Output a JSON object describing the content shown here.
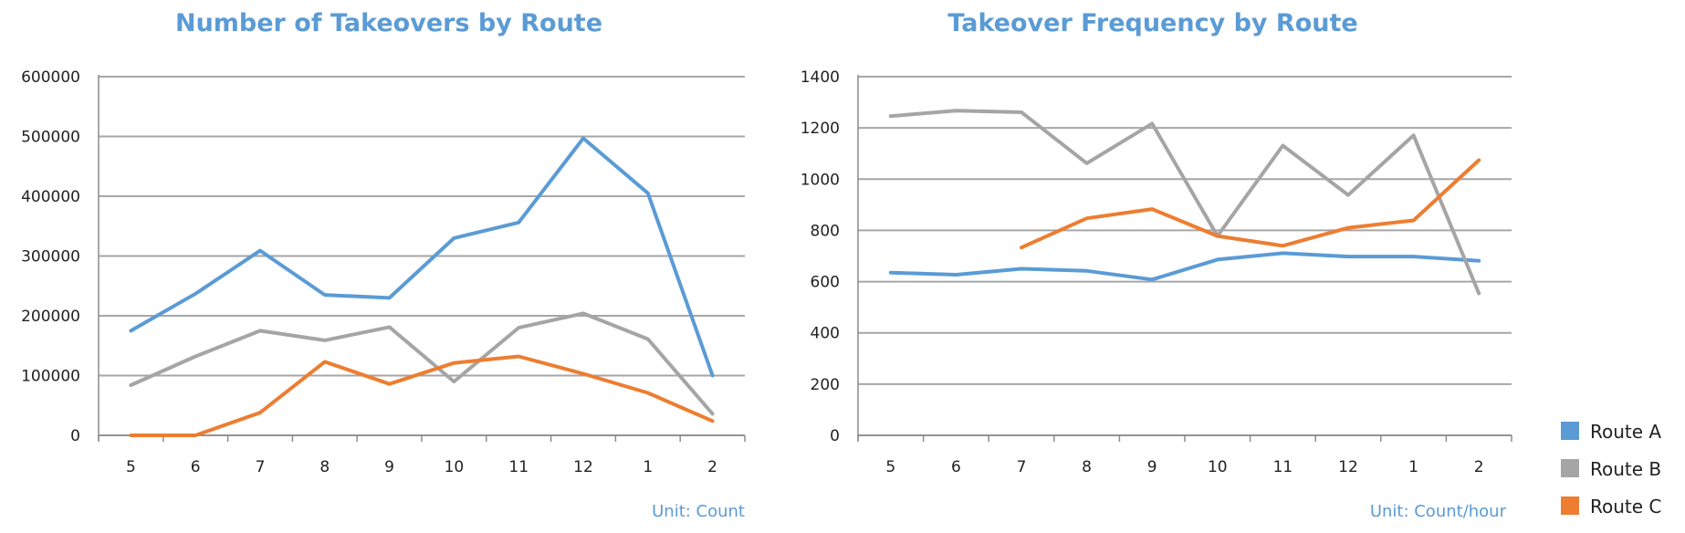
{
  "chart_data": [
    {
      "type": "line",
      "title": "Number of Takeovers by Route",
      "unit_note": "Unit: Count",
      "categories": [
        "5",
        "6",
        "7",
        "8",
        "9",
        "10",
        "11",
        "12",
        "1",
        "2"
      ],
      "ylim": [
        0,
        600000
      ],
      "yticks": [
        "0",
        "100000",
        "200000",
        "300000",
        "400000",
        "500000",
        "600000"
      ],
      "grid": true,
      "series": [
        {
          "name": "Route A",
          "color": "#5b9bd5",
          "values": [
            175000,
            237000,
            309000,
            235000,
            230000,
            330000,
            356000,
            497000,
            405000,
            100000
          ]
        },
        {
          "name": "Route B",
          "color": "#a5a5a5",
          "values": [
            84000,
            132000,
            175000,
            159000,
            181000,
            90000,
            180000,
            204000,
            161000,
            36000
          ]
        },
        {
          "name": "Route C",
          "color": "#ed7d31",
          "values": [
            0,
            0,
            38000,
            123000,
            86000,
            121000,
            132000,
            103000,
            71000,
            24000
          ]
        }
      ]
    },
    {
      "type": "line",
      "title": "Takeover Frequency by Route",
      "unit_note": "Unit: Count/hour",
      "categories": [
        "5",
        "6",
        "7",
        "8",
        "9",
        "10",
        "11",
        "12",
        "1",
        "2"
      ],
      "ylim": [
        0,
        1400
      ],
      "yticks": [
        "0",
        "200",
        "400",
        "600",
        "800",
        "1000",
        "1200",
        "1400"
      ],
      "grid": true,
      "series": [
        {
          "name": "Route A",
          "color": "#5b9bd5",
          "values": [
            635,
            627,
            650,
            642,
            608,
            686,
            711,
            698,
            698,
            681
          ]
        },
        {
          "name": "Route B",
          "color": "#a5a5a5",
          "values": [
            1246,
            1267,
            1261,
            1062,
            1217,
            778,
            1131,
            938,
            1171,
            554
          ]
        },
        {
          "name": "Route C",
          "color": "#ed7d31",
          "values": [
            null,
            null,
            733,
            847,
            883,
            778,
            740,
            810,
            839,
            1074
          ]
        }
      ]
    }
  ],
  "legend": {
    "placement": "bottom-right",
    "items": [
      {
        "label": "Route A",
        "color": "#5b9bd5"
      },
      {
        "label": "Route B",
        "color": "#a5a5a5"
      },
      {
        "label": "Route C",
        "color": "#ed7d31"
      }
    ]
  }
}
